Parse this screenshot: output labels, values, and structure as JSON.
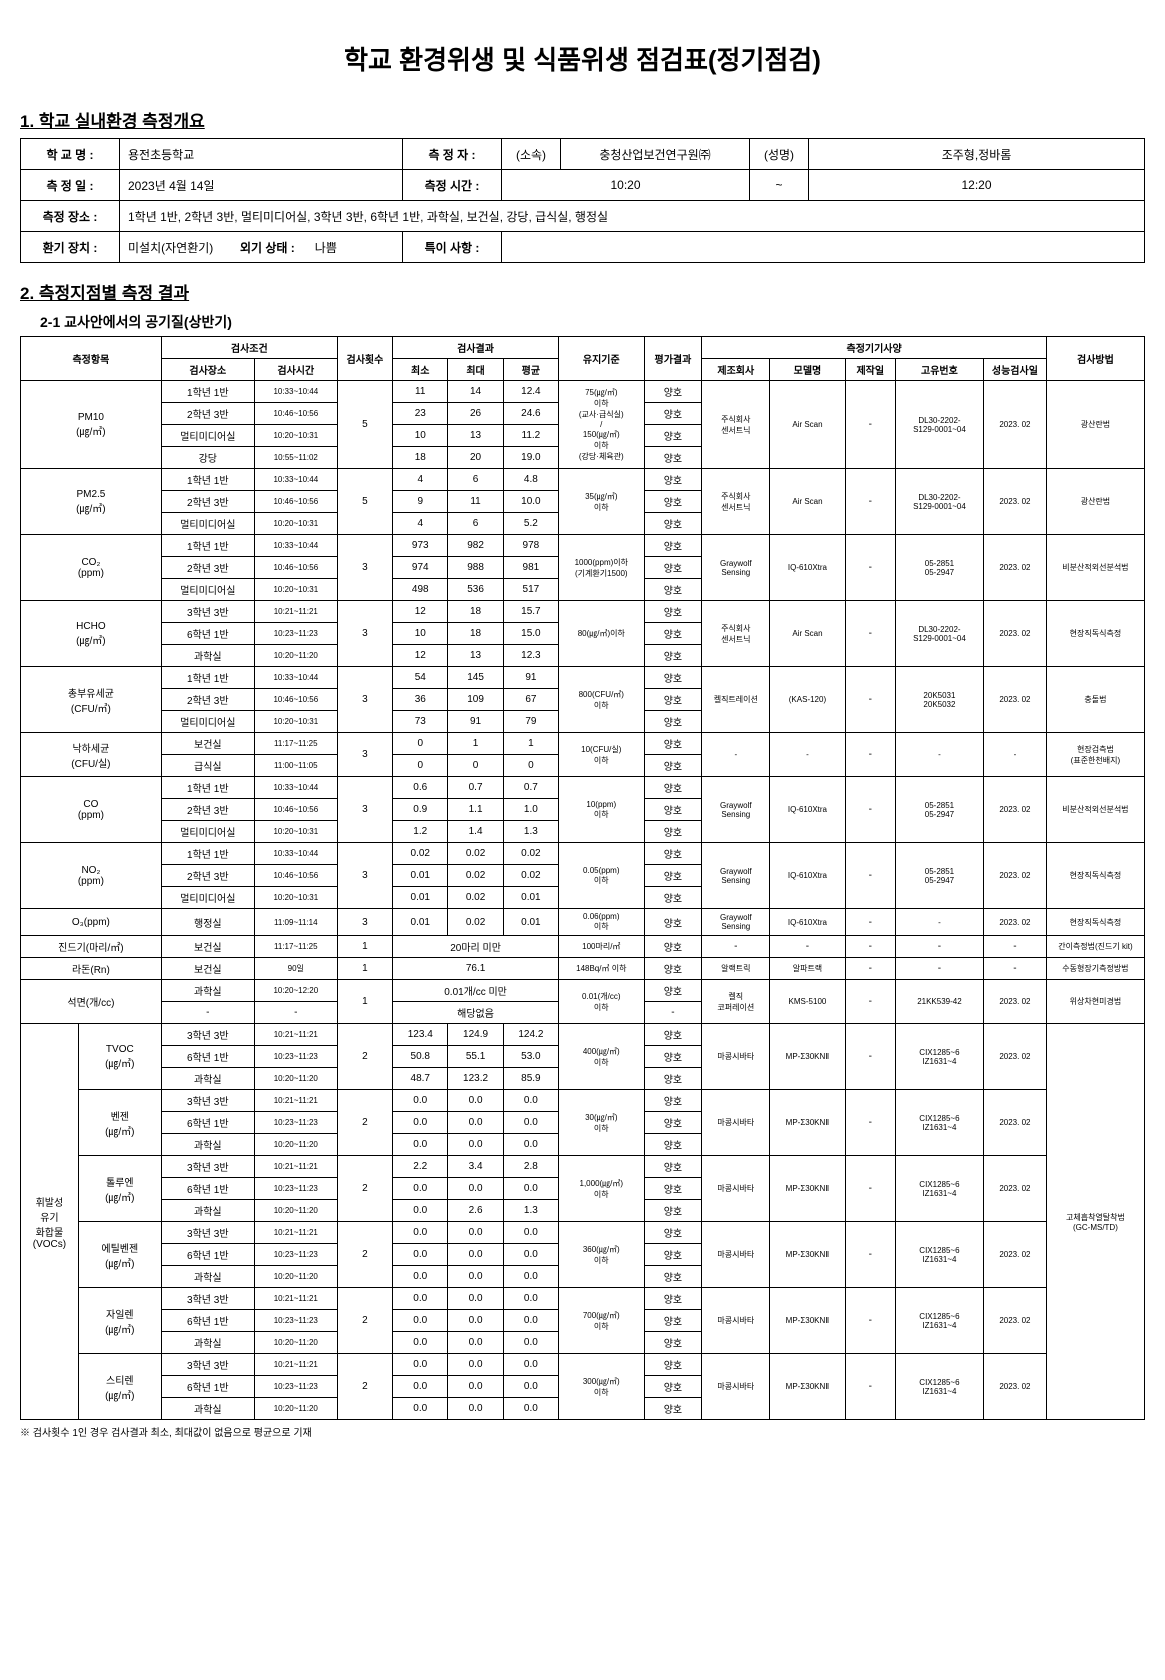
{
  "title": "학교 환경위생 및 식품위생 점검표(정기점검)",
  "section1_title": "1. 학교 실내환경 측정개요",
  "info": {
    "school_label": "학 교 명 :",
    "school": "용전초등학교",
    "inspector_label": "측 정 자 :",
    "inspector_affil_label": "(소속)",
    "inspector_affil": "충청산업보건연구원㈜",
    "inspector_name_label": "(성명)",
    "inspector_name": "조주형,정바롬",
    "date_label": "측 정 일 :",
    "date": "2023년 4월 14일",
    "time_label": "측정 시간 :",
    "time_from": "10:20",
    "time_tilde": "~",
    "time_to": "12:20",
    "place_label": "측정 장소 :",
    "place": "1학년 1반, 2학년 3반, 멀티미디어실, 3학년 3반, 6학년 1반, 과학실, 보건실, 강당, 급식실, 행정실",
    "vent_label": "환기 장치 :",
    "vent": "미설치(자연환기)",
    "outside_label": "외기 상태 :",
    "outside": "나쁨",
    "special_label": "특이 사항 :",
    "special": ""
  },
  "section2_title": "2. 측정지점별 측정 결과",
  "section2_1_title": "2-1 교사안에서의 공기질(상반기)",
  "headers": {
    "item": "측정항목",
    "cond": "검사조건",
    "place": "검사장소",
    "time": "검사시간",
    "count": "검사횟수",
    "result": "검사결과",
    "min": "최소",
    "max": "최대",
    "avg": "평균",
    "standard": "유지기준",
    "eval": "평가결과",
    "equip": "측정기기사양",
    "maker": "제조회사",
    "model": "모델명",
    "mfgdate": "제작일",
    "serial": "고유번호",
    "caldate": "성능검사일",
    "method": "검사방법"
  },
  "rows": {
    "pm10": {
      "name": "PM10\n(㎍/㎥)",
      "r": [
        [
          "1학년 1반",
          "10:33~10:44",
          "11",
          "14",
          "12.4"
        ],
        [
          "2학년 3반",
          "10:46~10:56",
          "23",
          "26",
          "24.6"
        ],
        [
          "멀티미디어실",
          "10:20~10:31",
          "10",
          "13",
          "11.2"
        ],
        [
          "강당",
          "10:55~11:02",
          "18",
          "20",
          "19.0"
        ]
      ],
      "count": "5",
      "std": "75(㎍/㎥)\n이하\n(교사·급식실)\n/\n150(㎍/㎥)\n이하\n(강당·체육관)",
      "eval": "양호",
      "maker": "주식회사\n센서트닉",
      "model": "Air Scan",
      "mfg": "-",
      "serial": "DL30-2202-\nS129-0001~04",
      "cal": "2023. 02",
      "method": "광산란법"
    },
    "pm25": {
      "name": "PM2.5\n(㎍/㎥)",
      "r": [
        [
          "1학년 1반",
          "10:33~10:44",
          "4",
          "6",
          "4.8"
        ],
        [
          "2학년 3반",
          "10:46~10:56",
          "9",
          "11",
          "10.0"
        ],
        [
          "멀티미디어실",
          "10:20~10:31",
          "4",
          "6",
          "5.2"
        ]
      ],
      "count": "5",
      "std": "35(㎍/㎥)\n이하",
      "eval": "양호",
      "maker": "주식회사\n센서트닉",
      "model": "Air Scan",
      "mfg": "-",
      "serial": "DL30-2202-\nS129-0001~04",
      "cal": "2023. 02",
      "method": "광산란법"
    },
    "co2": {
      "name": "CO₂\n(ppm)",
      "r": [
        [
          "1학년 1반",
          "10:33~10:44",
          "973",
          "982",
          "978"
        ],
        [
          "2학년 3반",
          "10:46~10:56",
          "974",
          "988",
          "981"
        ],
        [
          "멀티미디어실",
          "10:20~10:31",
          "498",
          "536",
          "517"
        ]
      ],
      "count": "3",
      "std": "1000(ppm)이하\n(기계환기1500)",
      "eval": "양호",
      "maker": "Graywolf\nSensing",
      "model": "IQ-610Xtra",
      "mfg": "-",
      "serial": "05-2851\n05-2947",
      "cal": "2023. 02",
      "method": "비분산적외선분석법"
    },
    "hcho": {
      "name": "HCHO\n(㎍/㎥)",
      "r": [
        [
          "3학년 3반",
          "10:21~11:21",
          "12",
          "18",
          "15.7"
        ],
        [
          "6학년 1반",
          "10:23~11:23",
          "10",
          "18",
          "15.0"
        ],
        [
          "과학실",
          "10:20~11:20",
          "12",
          "13",
          "12.3"
        ]
      ],
      "count": "3",
      "std": "80(㎍/㎥)이하",
      "eval": "양호",
      "maker": "주식회사\n센서트닉",
      "model": "Air Scan",
      "mfg": "-",
      "serial": "DL30-2202-\nS129-0001~04",
      "cal": "2023. 02",
      "method": "현장직독식측정"
    },
    "bacteria": {
      "name": "총부유세균\n(CFU/㎥)",
      "r": [
        [
          "1학년 1반",
          "10:33~10:44",
          "54",
          "145",
          "91"
        ],
        [
          "2학년 3반",
          "10:46~10:56",
          "36",
          "109",
          "67"
        ],
        [
          "멀티미디어실",
          "10:20~10:31",
          "73",
          "91",
          "79"
        ]
      ],
      "count": "3",
      "std": "800(CFU/㎥)\n이하",
      "eval": "양호",
      "maker": "켈직트레이션",
      "model": "(KAS-120)",
      "mfg": "-",
      "serial": "20K5031\n20K5032",
      "cal": "2023. 02",
      "method": "충돌법"
    },
    "fall": {
      "name": "낙하세균\n(CFU/실)",
      "r": [
        [
          "보건실",
          "11:17~11:25",
          "0",
          "1",
          "1"
        ],
        [
          "급식실",
          "11:00~11:05",
          "0",
          "0",
          "0"
        ]
      ],
      "count": "3",
      "std": "10(CFU/실)\n이하",
      "eval": "양호",
      "maker": "-",
      "model": "-",
      "mfg": "-",
      "serial": "-",
      "cal": "-",
      "method": "현장검측법\n(표준한천배지)"
    },
    "co": {
      "name": "CO\n(ppm)",
      "r": [
        [
          "1학년 1반",
          "10:33~10:44",
          "0.6",
          "0.7",
          "0.7"
        ],
        [
          "2학년 3반",
          "10:46~10:56",
          "0.9",
          "1.1",
          "1.0"
        ],
        [
          "멀티미디어실",
          "10:20~10:31",
          "1.2",
          "1.4",
          "1.3"
        ]
      ],
      "count": "3",
      "std": "10(ppm)\n이하",
      "eval": "양호",
      "maker": "Graywolf\nSensing",
      "model": "IQ-610Xtra",
      "mfg": "-",
      "serial": "05-2851\n05-2947",
      "cal": "2023. 02",
      "method": "비분산적외선분석법"
    },
    "no2": {
      "name": "NO₂\n(ppm)",
      "r": [
        [
          "1학년 1반",
          "10:33~10:44",
          "0.02",
          "0.02",
          "0.02"
        ],
        [
          "2학년 3반",
          "10:46~10:56",
          "0.01",
          "0.02",
          "0.02"
        ],
        [
          "멀티미디어실",
          "10:20~10:31",
          "0.01",
          "0.02",
          "0.01"
        ]
      ],
      "count": "3",
      "std": "0.05(ppm)\n이하",
      "eval": "양호",
      "maker": "Graywolf\nSensing",
      "model": "IQ-610Xtra",
      "mfg": "-",
      "serial": "05-2851\n05-2947",
      "cal": "2023. 02",
      "method": "현장직독식측정"
    },
    "o3": {
      "name": "O₃(ppm)",
      "r": [
        [
          "행정실",
          "11:09~11:14",
          "0.01",
          "0.02",
          "0.01"
        ]
      ],
      "count": "3",
      "std": "0.06(ppm)\n이하",
      "eval": "양호",
      "maker": "Graywolf\nSensing",
      "model": "IQ-610Xtra",
      "mfg": "-",
      "serial": "-",
      "cal": "2023. 02",
      "method": "현장직독식측정"
    },
    "mite": {
      "name": "진드기(마리/㎡)",
      "r": [
        [
          "보건실",
          "11:17~11:25"
        ]
      ],
      "span": "20마리 미만",
      "count": "1",
      "std": "100마리/㎡",
      "eval": "양호",
      "maker": "-",
      "model": "-",
      "mfg": "-",
      "serial": "-",
      "cal": "-",
      "method": "간이측정법(진드기 kit)"
    },
    "radon": {
      "name": "라돈(Rn)",
      "r": [
        [
          "보건실",
          "90일"
        ]
      ],
      "span": "76.1",
      "count": "1",
      "std": "148Bq/㎥ 이하",
      "eval": "양호",
      "maker": "알랙트릭",
      "model": "알파트랙",
      "mfg": "-",
      "serial": "-",
      "cal": "-",
      "method": "수동형장기측정방법"
    },
    "asbestos": {
      "name": "석면(개/cc)",
      "r": [
        [
          "과학실",
          "10:20~12:20"
        ],
        [
          "-",
          "-"
        ]
      ],
      "span1": "0.01개/cc 미만",
      "span2": "해당없음",
      "count": "1",
      "std": "0.01(개/cc)\n이하",
      "eval1": "양호",
      "eval2": "-",
      "maker": "켈직\n코퍼레이션",
      "model": "KMS-5100",
      "mfg": "-",
      "serial": "21KK539-42",
      "cal": "2023. 02",
      "method": "위상차현미경법"
    },
    "voc_group_label": "휘발성\n유기\n화합물\n(VOCs)",
    "tvoc": {
      "name": "TVOC\n(㎍/㎥)",
      "r": [
        [
          "3학년 3반",
          "10:21~11:21",
          "123.4",
          "124.9",
          "124.2"
        ],
        [
          "6학년 1반",
          "10:23~11:23",
          "50.8",
          "55.1",
          "53.0"
        ],
        [
          "과학실",
          "10:20~11:20",
          "48.7",
          "123.2",
          "85.9"
        ]
      ],
      "count": "2",
      "std": "400(㎍/㎥)\n이하",
      "eval": "양호",
      "maker": "마콩시바타",
      "model": "MP-Σ30KNⅡ",
      "mfg": "-",
      "serial": "CIX1285~6\nIZ1631~4",
      "cal": "2023. 02"
    },
    "benzene": {
      "name": "벤젠\n(㎍/㎥)",
      "r": [
        [
          "3학년 3반",
          "10:21~11:21",
          "0.0",
          "0.0",
          "0.0"
        ],
        [
          "6학년 1반",
          "10:23~11:23",
          "0.0",
          "0.0",
          "0.0"
        ],
        [
          "과학실",
          "10:20~11:20",
          "0.0",
          "0.0",
          "0.0"
        ]
      ],
      "count": "2",
      "std": "30(㎍/㎥)\n이하",
      "eval": "양호",
      "maker": "마콩시바타",
      "model": "MP-Σ30KNⅡ",
      "mfg": "-",
      "serial": "CIX1285~6\nIZ1631~4",
      "cal": "2023. 02"
    },
    "toluene": {
      "name": "톨루엔\n(㎍/㎥)",
      "r": [
        [
          "3학년 3반",
          "10:21~11:21",
          "2.2",
          "3.4",
          "2.8"
        ],
        [
          "6학년 1반",
          "10:23~11:23",
          "0.0",
          "0.0",
          "0.0"
        ],
        [
          "과학실",
          "10:20~11:20",
          "0.0",
          "2.6",
          "1.3"
        ]
      ],
      "count": "2",
      "std": "1,000(㎍/㎥)\n이하",
      "eval": "양호",
      "maker": "마콩시바타",
      "model": "MP-Σ30KNⅡ",
      "mfg": "-",
      "serial": "CIX1285~6\nIZ1631~4",
      "cal": "2023. 02"
    },
    "ethylbenzene": {
      "name": "에틸벤젠\n(㎍/㎥)",
      "r": [
        [
          "3학년 3반",
          "10:21~11:21",
          "0.0",
          "0.0",
          "0.0"
        ],
        [
          "6학년 1반",
          "10:23~11:23",
          "0.0",
          "0.0",
          "0.0"
        ],
        [
          "과학실",
          "10:20~11:20",
          "0.0",
          "0.0",
          "0.0"
        ]
      ],
      "count": "2",
      "std": "360(㎍/㎥)\n이하",
      "eval": "양호",
      "maker": "마콩시바타",
      "model": "MP-Σ30KNⅡ",
      "mfg": "-",
      "serial": "CIX1285~6\nIZ1631~4",
      "cal": "2023. 02"
    },
    "xylene": {
      "name": "자일렌\n(㎍/㎥)",
      "r": [
        [
          "3학년 3반",
          "10:21~11:21",
          "0.0",
          "0.0",
          "0.0"
        ],
        [
          "6학년 1반",
          "10:23~11:23",
          "0.0",
          "0.0",
          "0.0"
        ],
        [
          "과학실",
          "10:20~11:20",
          "0.0",
          "0.0",
          "0.0"
        ]
      ],
      "count": "2",
      "std": "700(㎍/㎥)\n이하",
      "eval": "양호",
      "maker": "마콩시바타",
      "model": "MP-Σ30KNⅡ",
      "mfg": "-",
      "serial": "CIX1285~6\nIZ1631~4",
      "cal": "2023. 02"
    },
    "styrene": {
      "name": "스티렌\n(㎍/㎥)",
      "r": [
        [
          "3학년 3반",
          "10:21~11:21",
          "0.0",
          "0.0",
          "0.0"
        ],
        [
          "6학년 1반",
          "10:23~11:23",
          "0.0",
          "0.0",
          "0.0"
        ],
        [
          "과학실",
          "10:20~11:20",
          "0.0",
          "0.0",
          "0.0"
        ]
      ],
      "count": "2",
      "std": "300(㎍/㎥)\n이하",
      "eval": "양호",
      "maker": "마콩시바타",
      "model": "MP-Σ30KNⅡ",
      "mfg": "-",
      "serial": "CIX1285~6\nIZ1631~4",
      "cal": "2023. 02"
    },
    "voc_method": "고체흡착열탈착법\n(GC-MS/TD)"
  },
  "footnote": "※ 검사횟수 1인 경우 검사결과 최소, 최대값이 없음으로 평균으로 기재"
}
